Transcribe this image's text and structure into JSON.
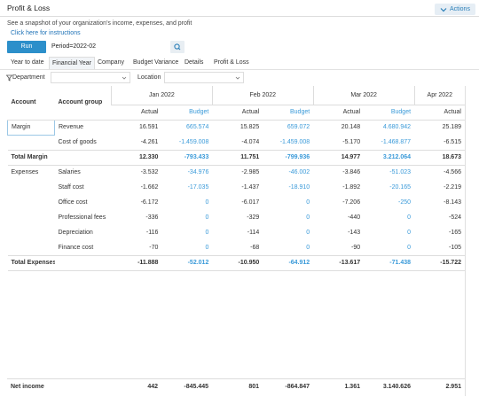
{
  "header": {
    "title": "Profit & Loss",
    "actions": "Actions",
    "description": "See a snapshot of your organization's income, expenses, and profit",
    "instructions_link": "Click here for instructions"
  },
  "toolbar": {
    "run": "Run",
    "period": "Period=2022-02"
  },
  "tabs": [
    "Year to date",
    "Financial Year",
    "Company",
    "Budget Variance",
    "Details",
    "Profit & Loss"
  ],
  "filters": {
    "department": "Department",
    "location": "Location"
  },
  "table": {
    "columns": [
      "Account",
      "Account group"
    ],
    "months": [
      {
        "name": "Jan 2022",
        "columns": [
          "Actual",
          "Budget"
        ]
      },
      {
        "name": "Feb 2022",
        "columns": [
          "Actual",
          "Budget"
        ]
      },
      {
        "name": "Mar 2022",
        "columns": [
          "Actual",
          "Budget"
        ]
      },
      {
        "name": "Apr 2022",
        "columns": [
          "Actual"
        ]
      }
    ],
    "rows": [
      [
        "Margin",
        "Revenue",
        "16.591",
        "665.574",
        "15.825",
        "659.072",
        "20.148",
        "4.680.942",
        "25.189"
      ],
      [
        null,
        "Cost of goods",
        "-4.261",
        "-1.459.008",
        "-4.074",
        "-1.459.008",
        "-5.170",
        "-1.468.877",
        "-6.515"
      ],
      [
        "Total Margin",
        null,
        "12.330",
        "-793.433",
        "11.751",
        "-799.936",
        "14.977",
        "3.212.064",
        "18.673"
      ],
      [
        "Expenses",
        "Salaries",
        "-3.532",
        "-34.976",
        "-2.985",
        "-46.002",
        "-3.846",
        "-51.023",
        "-4.566"
      ],
      [
        null,
        "Staff cost",
        "-1.662",
        "-17.035",
        "-1.437",
        "-18.910",
        "-1.892",
        "-20.165",
        "-2.219"
      ],
      [
        null,
        "Office cost",
        "-6.172",
        "0",
        "-6.017",
        "0",
        "-7.206",
        "-250",
        "-8.143"
      ],
      [
        null,
        "Professional fees",
        "-336",
        "0",
        "-329",
        "0",
        "-440",
        "0",
        "-524"
      ],
      [
        null,
        "Depreciation",
        "-116",
        "0",
        "-114",
        "0",
        "-143",
        "0",
        "-165"
      ],
      [
        null,
        "Finance cost",
        "-70",
        "0",
        "-68",
        "0",
        "-90",
        "0",
        "-105"
      ],
      [
        "Total Expenses",
        null,
        "-11.888",
        "-52.012",
        "-10.950",
        "-64.912",
        "-13.617",
        "-71.438",
        "-15.722"
      ]
    ],
    "footer_row": [
      "Net income",
      null,
      "442",
      "-845.445",
      "801",
      "-864.847",
      "1.361",
      "3.140.626",
      "2.951"
    ]
  }
}
